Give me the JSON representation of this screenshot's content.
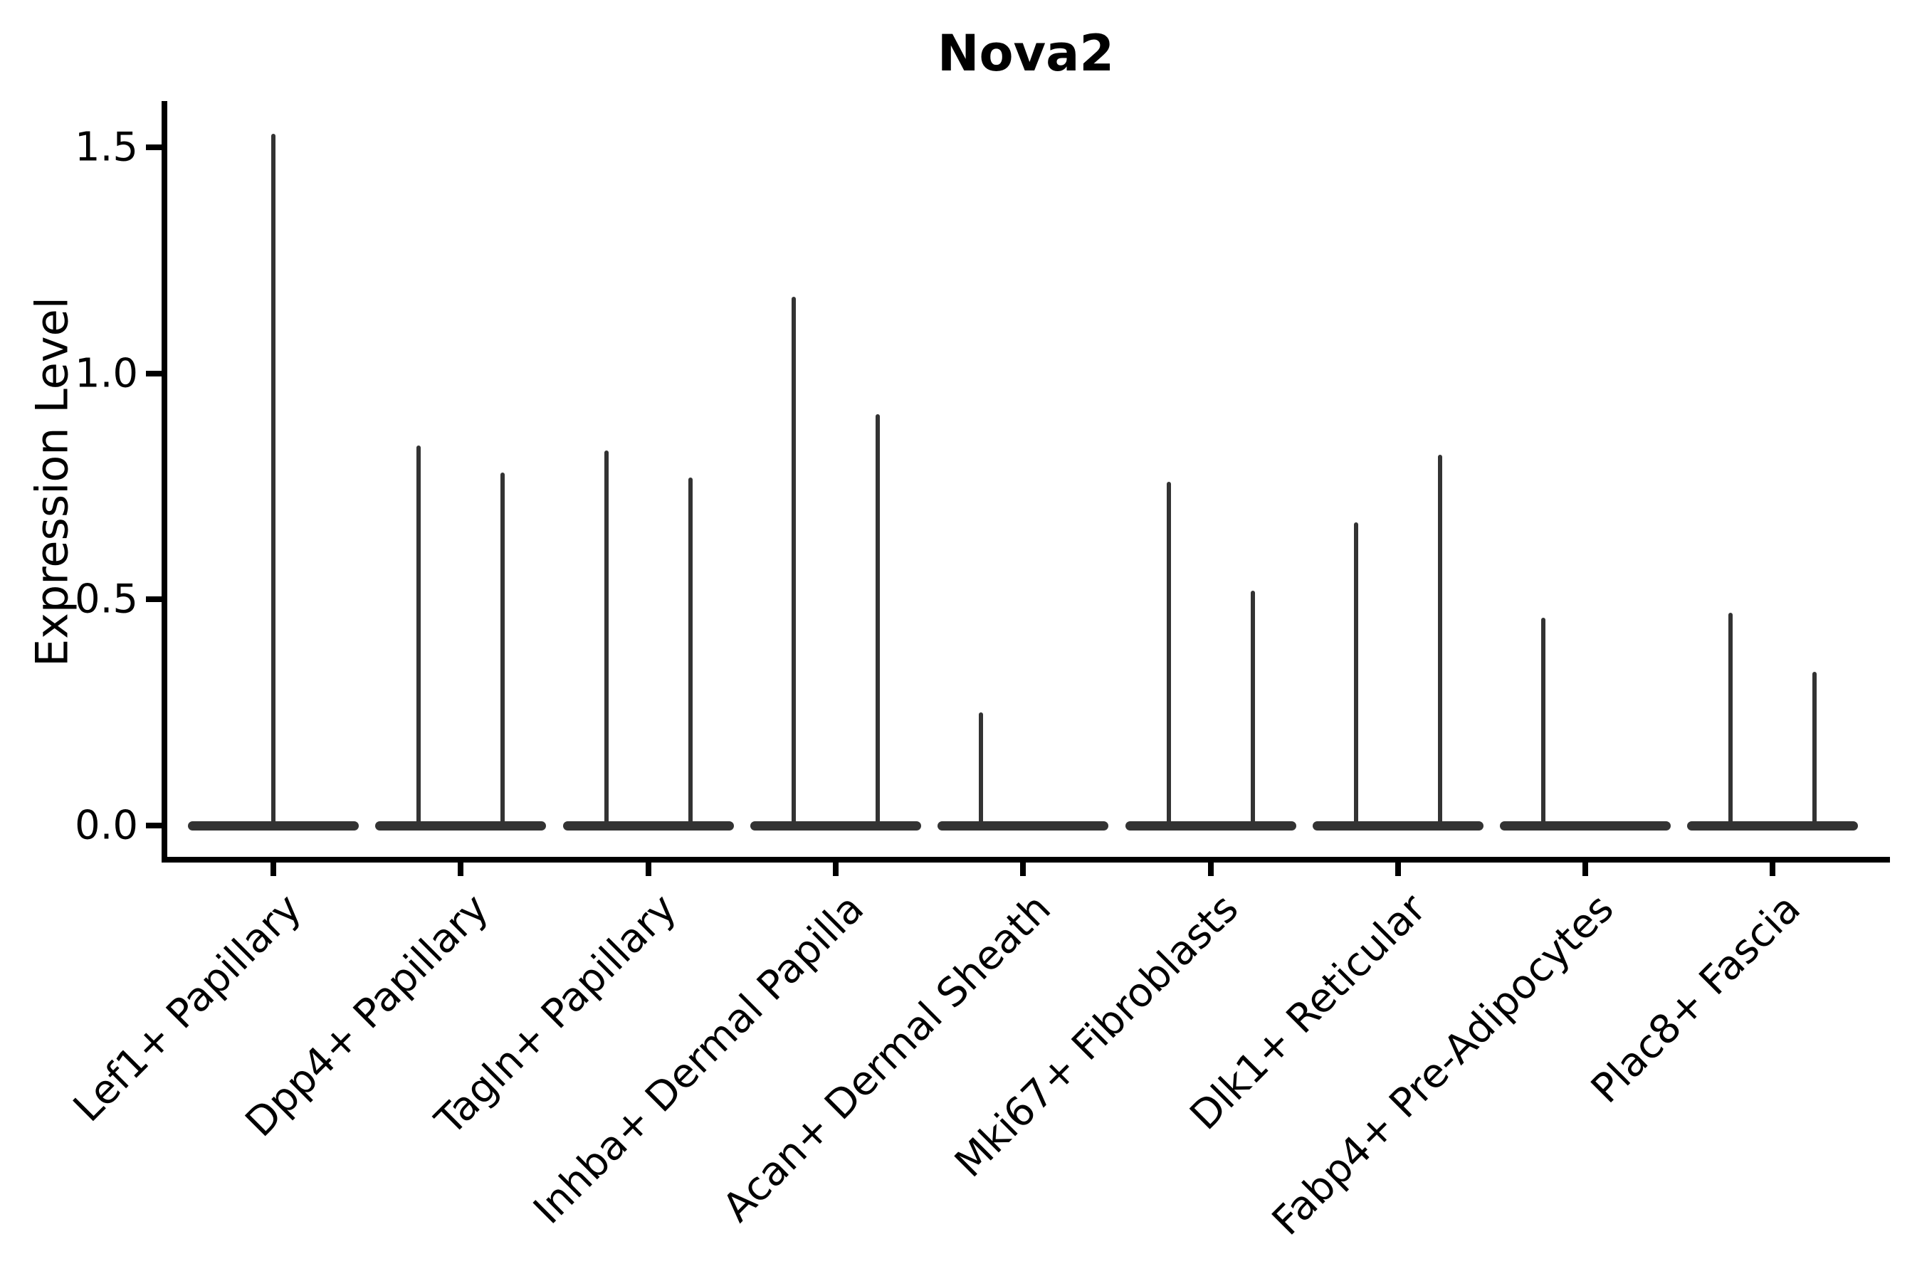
{
  "figure": {
    "title": "Nova2",
    "y_axis": {
      "label": "Expression Level",
      "ticks": [
        {
          "label": "1.5",
          "value": 1.5
        },
        {
          "label": "1.0",
          "value": 1.0
        },
        {
          "label": "0.5",
          "value": 0.5
        },
        {
          "label": "0.0",
          "value": 0.0
        }
      ]
    }
  },
  "chart_data": {
    "type": "violin",
    "title": "Nova2",
    "xlabel": "",
    "ylabel": "Expression Level",
    "ylim": [
      0,
      1.56
    ],
    "yticks": [
      0.0,
      0.5,
      1.0,
      1.5
    ],
    "grid": false,
    "legend": false,
    "categories": [
      "Lef1+ Papillary",
      "Dpp4+ Papillary",
      "Tagln+ Papillary",
      "Inhba+ Dermal Papilla",
      "Acan+ Dermal Sheath",
      "Mki67+ Fibroblasts",
      "Dlk1+ Reticular",
      "Fabp4+ Pre-Adipocytes",
      "Plac8+ Fascia"
    ],
    "violins": [
      {
        "category": "Lef1+ Papillary",
        "spikes": [
          {
            "pos": "center",
            "peak": 1.53
          }
        ]
      },
      {
        "category": "Dpp4+ Papillary",
        "spikes": [
          {
            "pos": "left",
            "peak": 0.84
          },
          {
            "pos": "right",
            "peak": 0.78
          }
        ]
      },
      {
        "category": "Tagln+ Papillary",
        "spikes": [
          {
            "pos": "left",
            "peak": 0.83
          },
          {
            "pos": "right",
            "peak": 0.77
          }
        ]
      },
      {
        "category": "Inhba+ Dermal Papilla",
        "spikes": [
          {
            "pos": "left",
            "peak": 1.17
          },
          {
            "pos": "right",
            "peak": 0.91
          }
        ]
      },
      {
        "category": "Acan+ Dermal Sheath",
        "spikes": [
          {
            "pos": "left",
            "peak": 0.25
          }
        ]
      },
      {
        "category": "Mki67+ Fibroblasts",
        "spikes": [
          {
            "pos": "left",
            "peak": 0.76
          },
          {
            "pos": "right",
            "peak": 0.52
          }
        ]
      },
      {
        "category": "Dlk1+ Reticular",
        "spikes": [
          {
            "pos": "left",
            "peak": 0.67
          },
          {
            "pos": "right",
            "peak": 0.82
          }
        ]
      },
      {
        "category": "Fabp4+ Pre-Adipocytes",
        "spikes": [
          {
            "pos": "left",
            "peak": 0.46
          }
        ]
      },
      {
        "category": "Plac8+ Fascia",
        "spikes": [
          {
            "pos": "left",
            "peak": 0.47
          },
          {
            "pos": "right",
            "peak": 0.34
          }
        ]
      }
    ],
    "colors": {
      "violin": "#333333",
      "axis": "#000000",
      "text": "#000000",
      "background": "#ffffff"
    }
  }
}
